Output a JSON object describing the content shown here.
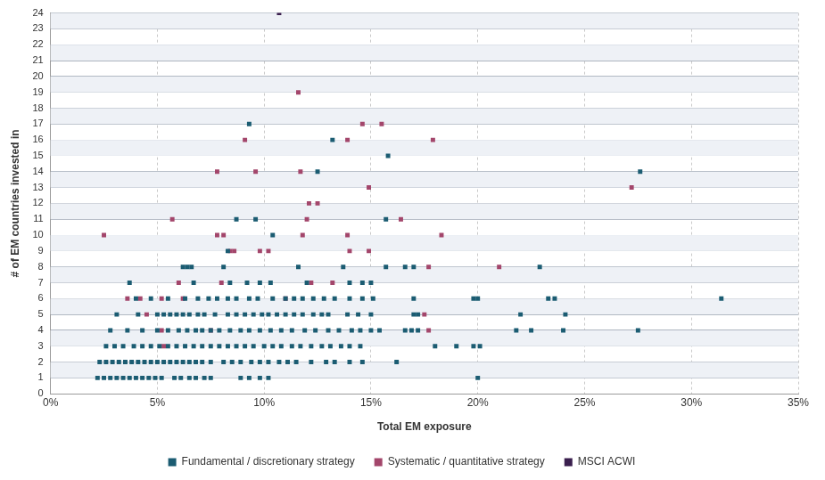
{
  "chart_data": {
    "type": "scatter",
    "x_label": "Total EM exposure",
    "y_label": "# of EM countries invested in",
    "xlim": [
      0,
      35
    ],
    "xticks": [
      {
        "value": 0,
        "label": "0%"
      },
      {
        "value": 5,
        "label": "5%"
      },
      {
        "value": 10,
        "label": "10%"
      },
      {
        "value": 15,
        "label": "15%"
      },
      {
        "value": 20,
        "label": "20%"
      },
      {
        "value": 25,
        "label": "25%"
      },
      {
        "value": 30,
        "label": "30%"
      },
      {
        "value": 35,
        "label": "35%"
      }
    ],
    "ylim": [
      0,
      24
    ],
    "yticks": [
      0,
      1,
      2,
      3,
      4,
      5,
      6,
      7,
      8,
      9,
      10,
      11,
      12,
      13,
      14,
      15,
      16,
      17,
      18,
      19,
      20,
      21,
      22,
      23,
      24
    ],
    "grid": true,
    "legend": "bottom",
    "marker": "square",
    "series": [
      {
        "name": "Fundamental / discretionary strategy",
        "color": "#1b5c72",
        "x": [
          9.3,
          13.2,
          15.8,
          12.5,
          27.6,
          8.7,
          9.6,
          15.7,
          10.4,
          8.3,
          6.2,
          6.4,
          6.6,
          8.1,
          11.6,
          13.7,
          15.7,
          16.6,
          17.0,
          22.9,
          3.7,
          6.7,
          8.4,
          9.2,
          9.8,
          10.3,
          12.0,
          14.0,
          14.6,
          15.0,
          4.0,
          4.7,
          5.5,
          6.3,
          6.9,
          7.4,
          7.8,
          8.3,
          8.7,
          9.3,
          9.7,
          10.4,
          11.0,
          11.4,
          11.8,
          12.3,
          12.8,
          13.3,
          14.0,
          14.6,
          15.1,
          17.0,
          19.8,
          20.0,
          23.3,
          23.6,
          31.4,
          3.1,
          4.1,
          5.0,
          5.3,
          5.6,
          5.9,
          6.2,
          6.5,
          6.9,
          7.2,
          7.7,
          8.3,
          8.7,
          9.1,
          9.5,
          9.9,
          10.2,
          10.6,
          11.0,
          11.4,
          11.8,
          12.3,
          12.7,
          13.0,
          13.9,
          14.4,
          15.0,
          17.0,
          17.2,
          22.0,
          24.1,
          2.8,
          3.6,
          4.3,
          5.0,
          5.5,
          6.0,
          6.4,
          6.8,
          7.1,
          7.5,
          7.9,
          8.4,
          8.9,
          9.3,
          9.8,
          10.3,
          10.8,
          11.3,
          11.9,
          12.4,
          13.0,
          13.5,
          14.1,
          14.5,
          15.0,
          15.4,
          16.6,
          16.9,
          17.2,
          21.8,
          22.5,
          24.0,
          27.5,
          2.6,
          3.0,
          3.4,
          3.9,
          4.3,
          4.7,
          5.1,
          5.5,
          5.9,
          6.3,
          6.7,
          7.1,
          7.5,
          7.9,
          8.3,
          8.7,
          9.1,
          9.5,
          10.0,
          10.4,
          10.8,
          11.3,
          11.7,
          12.2,
          12.7,
          13.1,
          13.6,
          14.0,
          14.5,
          18.0,
          19.0,
          19.8,
          20.1,
          2.3,
          2.6,
          2.9,
          3.2,
          3.5,
          3.8,
          4.1,
          4.4,
          4.7,
          5.0,
          5.3,
          5.6,
          5.9,
          6.2,
          6.5,
          6.8,
          7.1,
          7.5,
          8.1,
          8.5,
          8.9,
          9.4,
          9.8,
          10.2,
          10.7,
          11.1,
          11.5,
          12.2,
          12.9,
          13.3,
          14.0,
          14.6,
          16.2,
          2.2,
          2.5,
          2.8,
          3.1,
          3.4,
          3.7,
          4.0,
          4.3,
          4.6,
          4.9,
          5.2,
          5.8,
          6.1,
          6.5,
          6.8,
          7.2,
          7.5,
          8.9,
          9.3,
          9.8,
          10.2,
          20.0
        ],
        "y": [
          17,
          16,
          15,
          14,
          14,
          11,
          11,
          11,
          10,
          9,
          8,
          8,
          8,
          8,
          8,
          8,
          8,
          8,
          8,
          8,
          7,
          7,
          7,
          7,
          7,
          7,
          7,
          7,
          7,
          7,
          6,
          6,
          6,
          6,
          6,
          6,
          6,
          6,
          6,
          6,
          6,
          6,
          6,
          6,
          6,
          6,
          6,
          6,
          6,
          6,
          6,
          6,
          6,
          6,
          6,
          6,
          6,
          5,
          5,
          5,
          5,
          5,
          5,
          5,
          5,
          5,
          5,
          5,
          5,
          5,
          5,
          5,
          5,
          5,
          5,
          5,
          5,
          5,
          5,
          5,
          5,
          5,
          5,
          5,
          5,
          5,
          5,
          5,
          4,
          4,
          4,
          4,
          4,
          4,
          4,
          4,
          4,
          4,
          4,
          4,
          4,
          4,
          4,
          4,
          4,
          4,
          4,
          4,
          4,
          4,
          4,
          4,
          4,
          4,
          4,
          4,
          4,
          4,
          4,
          4,
          4,
          3,
          3,
          3,
          3,
          3,
          3,
          3,
          3,
          3,
          3,
          3,
          3,
          3,
          3,
          3,
          3,
          3,
          3,
          3,
          3,
          3,
          3,
          3,
          3,
          3,
          3,
          3,
          3,
          3,
          3,
          3,
          3,
          3,
          2,
          2,
          2,
          2,
          2,
          2,
          2,
          2,
          2,
          2,
          2,
          2,
          2,
          2,
          2,
          2,
          2,
          2,
          2,
          2,
          2,
          2,
          2,
          2,
          2,
          2,
          2,
          2,
          2,
          2,
          2,
          2,
          2,
          1,
          1,
          1,
          1,
          1,
          1,
          1,
          1,
          1,
          1,
          1,
          1,
          1,
          1,
          1,
          1,
          1,
          1,
          1,
          1,
          1,
          1
        ]
      },
      {
        "name": "Systematic / quantitative strategy",
        "color": "#a3466b",
        "x": [
          11.6,
          14.6,
          15.5,
          9.1,
          13.9,
          17.9,
          7.8,
          9.6,
          11.7,
          14.9,
          27.2,
          12.1,
          12.5,
          5.7,
          12.0,
          16.4,
          2.5,
          7.8,
          8.1,
          11.8,
          13.9,
          18.3,
          8.4,
          8.6,
          9.8,
          10.2,
          14.0,
          14.9,
          17.7,
          21.0,
          6.0,
          8.0,
          12.2,
          13.2,
          3.6,
          4.2,
          5.2,
          6.2,
          11.0,
          4.5,
          17.5,
          5.2,
          7.5,
          17.7,
          5.3
        ],
        "y": [
          19,
          17,
          17,
          16,
          16,
          16,
          14,
          14,
          14,
          13,
          13,
          12,
          12,
          11,
          11,
          11,
          10,
          10,
          10,
          10,
          10,
          10,
          9,
          9,
          9,
          9,
          9,
          9,
          8,
          8,
          7,
          7,
          7,
          7,
          6,
          6,
          6,
          6,
          6,
          5,
          5,
          4,
          4,
          4,
          3
        ]
      },
      {
        "name": "MSCI ACWI",
        "color": "#3a1f4e",
        "x": [
          10.7
        ],
        "y": [
          24
        ]
      }
    ]
  }
}
